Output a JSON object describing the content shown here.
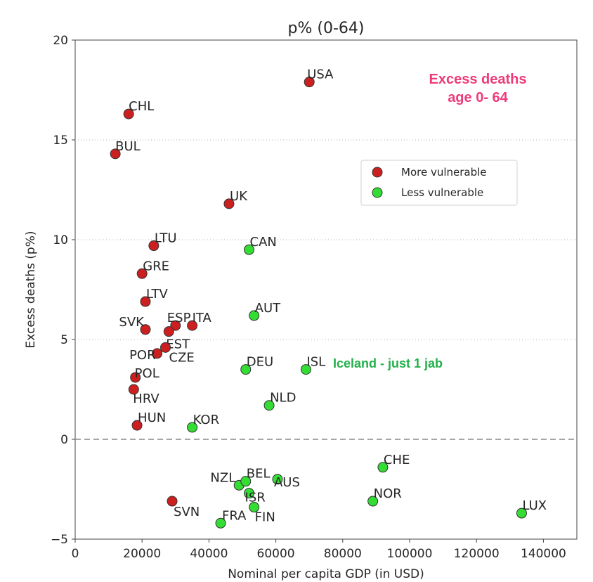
{
  "chart_data": {
    "type": "scatter",
    "title": "p% (0-64)",
    "xlabel": "Nominal per capita GDP (in USD)",
    "ylabel": "Excess deaths (p%)",
    "xlim": [
      0,
      150000
    ],
    "ylim": [
      -5,
      20
    ],
    "xticks": [
      0,
      20000,
      40000,
      60000,
      80000,
      100000,
      120000,
      140000
    ],
    "yticks": [
      -5,
      0,
      5,
      10,
      15,
      20
    ],
    "grid": "dotted at y 5, 10, 15; dashed zero line",
    "legend_position": "upper-right",
    "colors": {
      "more": "#cc1f1f",
      "less": "#33dd33"
    },
    "series": [
      {
        "name": "More vulnerable",
        "points": [
          {
            "label": "USA",
            "x": 70000,
            "y": 17.9
          },
          {
            "label": "CHL",
            "x": 16000,
            "y": 16.3
          },
          {
            "label": "BUL",
            "x": 12000,
            "y": 14.3
          },
          {
            "label": "UK",
            "x": 46000,
            "y": 11.8
          },
          {
            "label": "LTU",
            "x": 23500,
            "y": 9.7
          },
          {
            "label": "GRE",
            "x": 20000,
            "y": 8.3
          },
          {
            "label": "LTV",
            "x": 21000,
            "y": 6.9
          },
          {
            "label": "SVK",
            "x": 21000,
            "y": 5.5
          },
          {
            "label": "ESP",
            "x": 30000,
            "y": 5.7
          },
          {
            "label": "ITA",
            "x": 35000,
            "y": 5.7
          },
          {
            "label": "EST",
            "x": 28000,
            "y": 5.4
          },
          {
            "label": "POR",
            "x": 24500,
            "y": 4.3
          },
          {
            "label": "CZE",
            "x": 27000,
            "y": 4.6
          },
          {
            "label": "POL",
            "x": 18000,
            "y": 3.1
          },
          {
            "label": "HRV",
            "x": 17500,
            "y": 2.5
          },
          {
            "label": "HUN",
            "x": 18500,
            "y": 0.7
          },
          {
            "label": "SVN",
            "x": 29000,
            "y": -3.1
          }
        ]
      },
      {
        "name": "Less vulnerable",
        "points": [
          {
            "label": "CAN",
            "x": 52000,
            "y": 9.5
          },
          {
            "label": "AUT",
            "x": 53500,
            "y": 6.2
          },
          {
            "label": "DEU",
            "x": 51000,
            "y": 3.5
          },
          {
            "label": "ISL",
            "x": 69000,
            "y": 3.5
          },
          {
            "label": "NLD",
            "x": 58000,
            "y": 1.7
          },
          {
            "label": "KOR",
            "x": 35000,
            "y": 0.6
          },
          {
            "label": "CHE",
            "x": 92000,
            "y": -1.4
          },
          {
            "label": "NZL",
            "x": 49000,
            "y": -2.3
          },
          {
            "label": "BEL",
            "x": 51000,
            "y": -2.1
          },
          {
            "label": "AUS",
            "x": 60500,
            "y": -2.0
          },
          {
            "label": "ISR",
            "x": 52000,
            "y": -2.7
          },
          {
            "label": "NOR",
            "x": 89000,
            "y": -3.1
          },
          {
            "label": "FRA",
            "x": 43500,
            "y": -4.2
          },
          {
            "label": "FIN",
            "x": 53500,
            "y": -3.4
          },
          {
            "label": "LUX",
            "x": 133500,
            "y": -3.7
          }
        ]
      }
    ],
    "annotations": {
      "excess_line1": "Excess deaths",
      "excess_line2": "age 0- 64",
      "iceland_note": "Iceland - just 1 jab"
    }
  }
}
